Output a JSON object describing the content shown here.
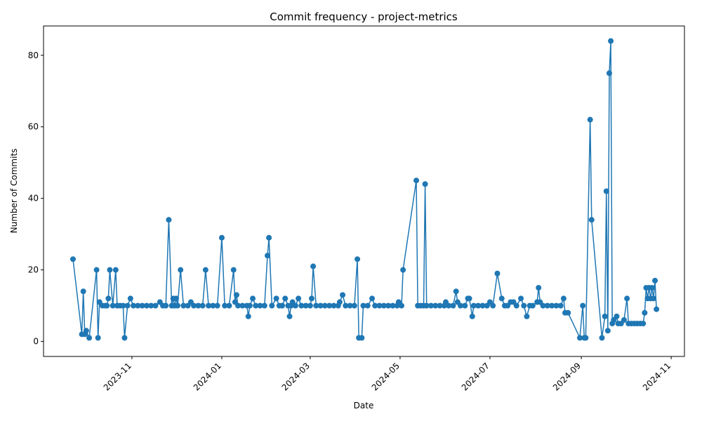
{
  "chart_data": {
    "type": "line",
    "title": "Commit frequency - project-metrics",
    "x_label": "Date",
    "y_label": "Number of Commits",
    "color": "#1f77b4",
    "x": [
      "2023-09-22",
      "2023-09-28",
      "2023-09-29",
      "2023-09-30",
      "2023-10-01",
      "2023-10-03",
      "2023-10-08",
      "2023-10-09",
      "2023-10-10",
      "2023-10-12",
      "2023-10-14",
      "2023-10-15",
      "2023-10-16",
      "2023-10-17",
      "2023-10-19",
      "2023-10-21",
      "2023-10-22",
      "2023-10-24",
      "2023-10-26",
      "2023-10-27",
      "2023-10-29",
      "2023-10-31",
      "2023-11-02",
      "2023-11-05",
      "2023-11-08",
      "2023-11-11",
      "2023-11-14",
      "2023-11-17",
      "2023-11-20",
      "2023-11-22",
      "2023-11-24",
      "2023-11-26",
      "2023-11-28",
      "2023-11-29",
      "2023-11-30",
      "2023-12-01",
      "2023-12-02",
      "2023-12-04",
      "2023-12-06",
      "2023-12-09",
      "2023-12-11",
      "2023-12-13",
      "2023-12-16",
      "2023-12-19",
      "2023-12-21",
      "2023-12-23",
      "2023-12-26",
      "2023-12-29",
      "2024-01-01",
      "2024-01-03",
      "2024-01-06",
      "2024-01-09",
      "2024-01-10",
      "2024-01-11",
      "2024-01-12",
      "2024-01-15",
      "2024-01-18",
      "2024-01-19",
      "2024-01-20",
      "2024-01-22",
      "2024-01-24",
      "2024-01-27",
      "2024-01-30",
      "2024-02-01",
      "2024-02-02",
      "2024-02-04",
      "2024-02-07",
      "2024-02-09",
      "2024-02-11",
      "2024-02-13",
      "2024-02-15",
      "2024-02-16",
      "2024-02-17",
      "2024-02-18",
      "2024-02-20",
      "2024-02-22",
      "2024-02-24",
      "2024-02-27",
      "2024-03-01",
      "2024-03-02",
      "2024-03-03",
      "2024-03-05",
      "2024-03-08",
      "2024-03-11",
      "2024-03-14",
      "2024-03-17",
      "2024-03-20",
      "2024-03-21",
      "2024-03-23",
      "2024-03-25",
      "2024-03-28",
      "2024-03-31",
      "2024-04-02",
      "2024-04-03",
      "2024-04-05",
      "2024-04-06",
      "2024-04-09",
      "2024-04-12",
      "2024-04-14",
      "2024-04-17",
      "2024-04-20",
      "2024-04-23",
      "2024-04-26",
      "2024-04-29",
      "2024-04-30",
      "2024-05-02",
      "2024-05-03",
      "2024-05-12",
      "2024-05-13",
      "2024-05-15",
      "2024-05-17",
      "2024-05-18",
      "2024-05-19",
      "2024-05-22",
      "2024-05-25",
      "2024-05-28",
      "2024-05-31",
      "2024-06-01",
      "2024-06-03",
      "2024-06-06",
      "2024-06-08",
      "2024-06-09",
      "2024-06-11",
      "2024-06-14",
      "2024-06-16",
      "2024-06-17",
      "2024-06-19",
      "2024-06-20",
      "2024-06-23",
      "2024-06-26",
      "2024-06-29",
      "2024-07-01",
      "2024-07-03",
      "2024-07-06",
      "2024-07-09",
      "2024-07-11",
      "2024-07-13",
      "2024-07-15",
      "2024-07-17",
      "2024-07-19",
      "2024-07-22",
      "2024-07-24",
      "2024-07-26",
      "2024-07-28",
      "2024-07-30",
      "2024-08-02",
      "2024-08-03",
      "2024-08-04",
      "2024-08-06",
      "2024-08-09",
      "2024-08-12",
      "2024-08-15",
      "2024-08-18",
      "2024-08-20",
      "2024-08-21",
      "2024-08-23",
      "2024-08-31",
      "2024-09-02",
      "2024-09-03",
      "2024-09-04",
      "2024-09-07",
      "2024-09-08",
      "2024-09-15",
      "2024-09-17",
      "2024-09-18",
      "2024-09-19",
      "2024-09-20",
      "2024-09-21",
      "2024-09-22",
      "2024-09-23",
      "2024-09-25",
      "2024-09-26",
      "2024-09-28",
      "2024-09-30",
      "2024-10-02",
      "2024-10-03",
      "2024-10-05",
      "2024-10-07",
      "2024-10-09",
      "2024-10-11",
      "2024-10-13",
      "2024-10-14",
      "2024-10-15",
      "2024-10-16",
      "2024-10-17",
      "2024-10-18",
      "2024-10-19",
      "2024-10-20",
      "2024-10-21",
      "2024-10-22"
    ],
    "values": [
      23,
      2,
      14,
      2,
      3,
      1,
      20,
      1,
      11,
      10,
      10,
      10,
      12,
      20,
      10,
      20,
      10,
      10,
      10,
      1,
      10,
      12,
      10,
      10,
      10,
      10,
      10,
      10,
      11,
      10,
      10,
      34,
      10,
      12,
      10,
      12,
      10,
      20,
      10,
      10,
      11,
      10,
      10,
      10,
      20,
      10,
      10,
      10,
      29,
      10,
      10,
      20,
      11,
      13,
      10,
      10,
      10,
      7,
      10,
      12,
      10,
      10,
      10,
      24,
      29,
      10,
      12,
      10,
      10,
      12,
      10,
      7,
      10,
      11,
      10,
      12,
      10,
      10,
      10,
      12,
      21,
      10,
      10,
      10,
      10,
      10,
      10,
      11,
      13,
      10,
      10,
      10,
      23,
      1,
      1,
      10,
      10,
      12,
      10,
      10,
      10,
      10,
      10,
      10,
      11,
      10,
      20,
      45,
      10,
      10,
      10,
      44,
      10,
      10,
      10,
      10,
      10,
      11,
      10,
      10,
      14,
      11,
      10,
      10,
      12,
      12,
      7,
      10,
      10,
      10,
      10,
      11,
      10,
      19,
      12,
      10,
      10,
      11,
      11,
      10,
      12,
      10,
      7,
      10,
      10,
      11,
      15,
      11,
      10,
      10,
      10,
      10,
      10,
      12,
      8,
      8,
      1,
      10,
      1,
      1,
      62,
      34,
      1,
      7,
      42,
      3,
      75,
      84,
      5,
      6,
      7,
      5,
      5,
      6,
      12,
      5,
      5,
      5,
      5,
      5,
      5,
      8,
      15,
      12,
      15,
      12,
      15,
      12,
      17,
      9
    ],
    "xlim": [
      "2023-09-02",
      "2024-11-10"
    ],
    "xticks": [
      "2023-11",
      "2024-01",
      "2024-03",
      "2024-05",
      "2024-07",
      "2024-09",
      "2024-11"
    ],
    "ylim": [
      -4.2,
      88.2
    ],
    "yticks": [
      0,
      20,
      40,
      60,
      80
    ]
  }
}
